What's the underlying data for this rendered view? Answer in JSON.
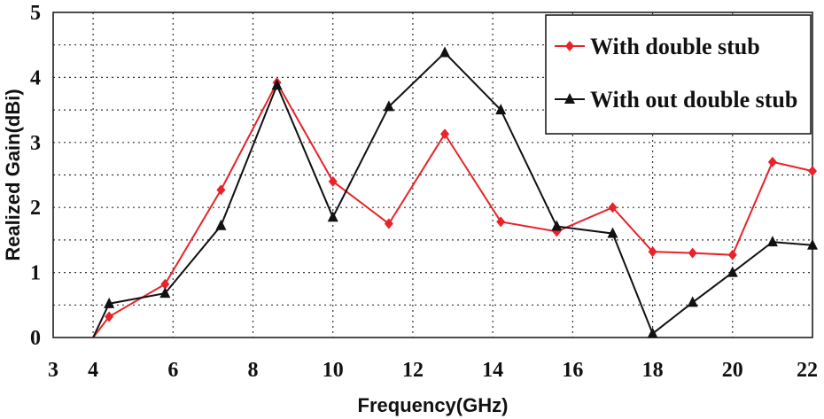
{
  "chart_data": {
    "type": "line",
    "title": "",
    "xlabel": "Frequency(GHz)",
    "ylabel": "Realized Gain(dBi)",
    "xlim": [
      3,
      22
    ],
    "ylim": [
      0,
      5
    ],
    "x_ticks": [
      "3",
      "4",
      "6",
      "8",
      "10",
      "12",
      "14",
      "16",
      "18",
      "20",
      "22"
    ],
    "y_ticks": [
      "0",
      "1",
      "2",
      "3",
      "4",
      "5"
    ],
    "grid": true,
    "legend_position": "top-right",
    "series": [
      {
        "name": "With double stub",
        "color": "#e8232a",
        "marker": "diamond",
        "x": [
          4,
          4.4,
          5.8,
          7.2,
          8.6,
          10,
          11.4,
          12.8,
          14.2,
          15.6,
          17,
          18,
          19,
          20,
          21,
          22
        ],
        "y": [
          0,
          0.32,
          0.82,
          2.27,
          3.92,
          2.4,
          1.75,
          3.13,
          1.78,
          1.63,
          2.0,
          1.32,
          1.3,
          1.27,
          2.7,
          2.56
        ]
      },
      {
        "name": "With out double stub",
        "color": "#111111",
        "marker": "triangle",
        "x": [
          4,
          4.4,
          5.8,
          7.2,
          8.6,
          10,
          11.4,
          12.8,
          14.2,
          15.6,
          17,
          18,
          19,
          20,
          21,
          22
        ],
        "y": [
          0,
          0.52,
          0.68,
          1.72,
          3.88,
          1.85,
          3.55,
          4.38,
          3.5,
          1.71,
          1.6,
          0.06,
          0.54,
          1.0,
          1.47,
          1.42
        ]
      }
    ]
  }
}
